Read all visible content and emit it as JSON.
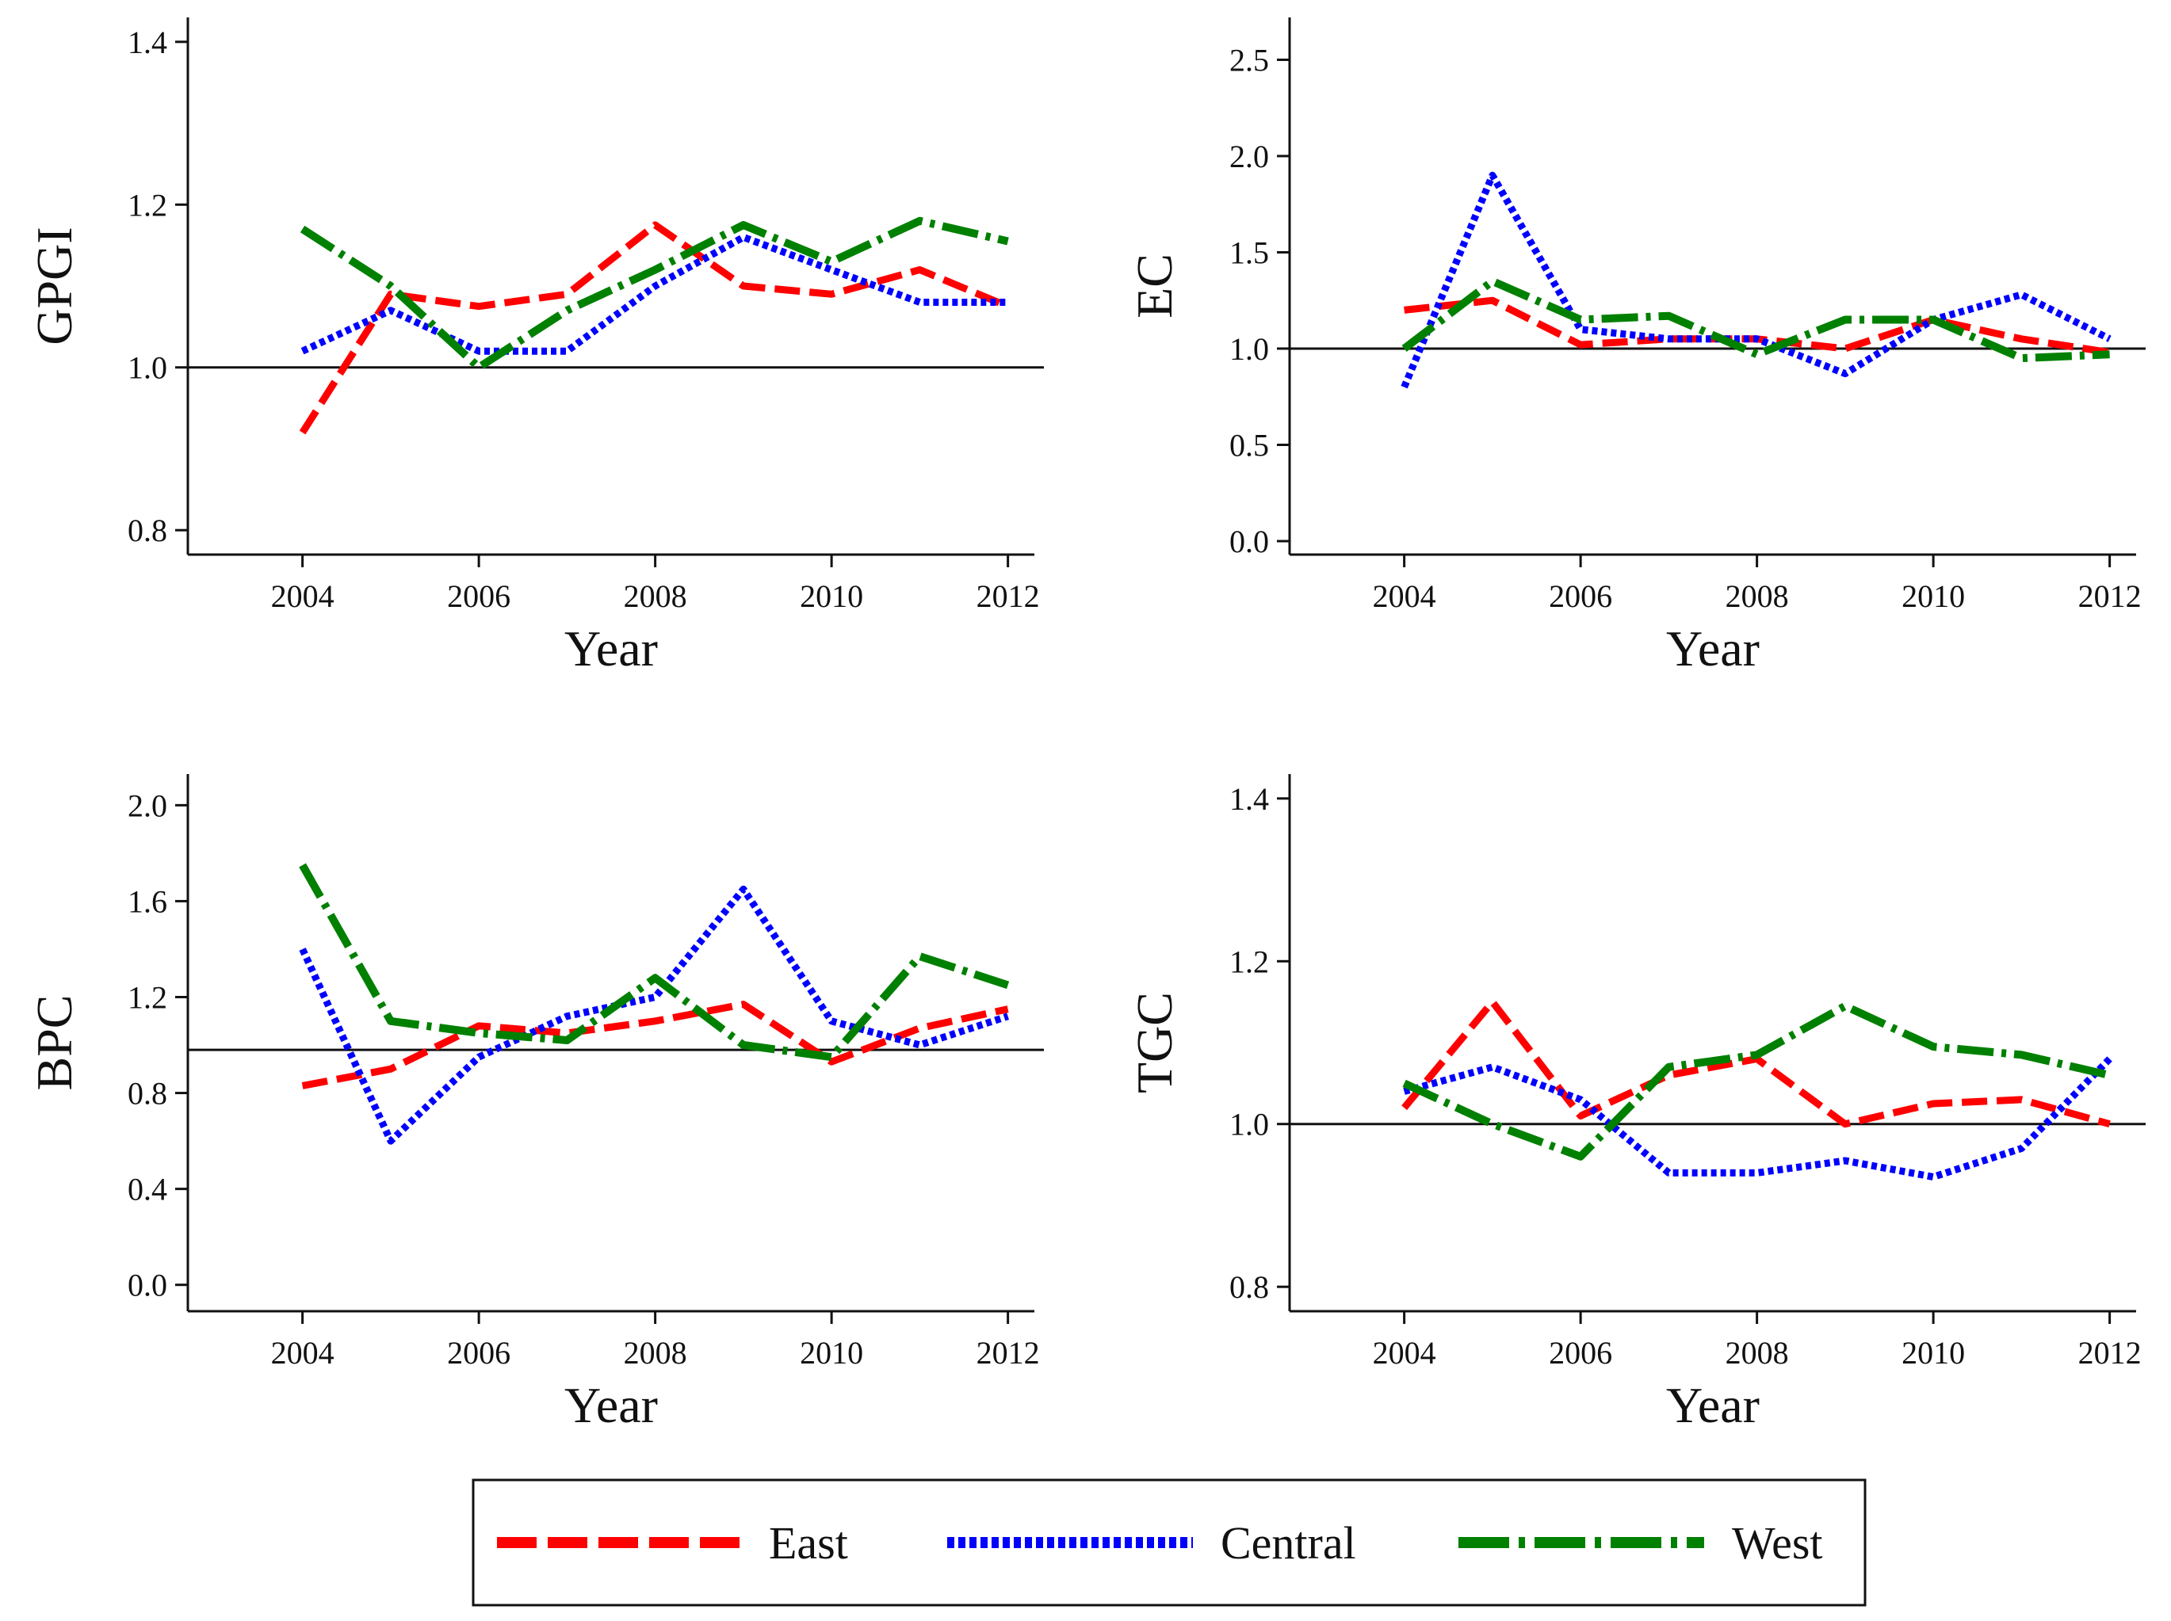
{
  "legend": {
    "entries": [
      {
        "name": "East",
        "color": "#ff0000",
        "style": "dashed"
      },
      {
        "name": "Central",
        "color": "#0000ff",
        "style": "dotted"
      },
      {
        "name": "West",
        "color": "#008000",
        "style": "dashdot"
      }
    ],
    "placement": "bottom-center"
  },
  "chart_data": [
    {
      "type": "line",
      "ylabel": "GPGI",
      "xlabel": "Year",
      "x": [
        2004,
        2005,
        2006,
        2007,
        2008,
        2009,
        2010,
        2011,
        2012
      ],
      "xticks": [
        "2004",
        "2006",
        "2008",
        "2010",
        "2012"
      ],
      "xlim": [
        2002.7,
        2012.3
      ],
      "ylim": [
        0.77,
        1.43
      ],
      "yticks": [
        "0.8",
        "1.0",
        "1.2",
        "1.4"
      ],
      "reference_line": 1.0,
      "series": [
        {
          "name": "East",
          "values": [
            0.92,
            1.09,
            1.075,
            1.09,
            1.175,
            1.1,
            1.09,
            1.12,
            1.075
          ]
        },
        {
          "name": "Central",
          "values": [
            1.02,
            1.07,
            1.02,
            1.02,
            1.1,
            1.16,
            1.12,
            1.08,
            1.08
          ]
        },
        {
          "name": "West",
          "values": [
            1.17,
            1.1,
            1.0,
            1.07,
            1.12,
            1.175,
            1.13,
            1.18,
            1.155
          ]
        }
      ]
    },
    {
      "type": "line",
      "ylabel": "EC",
      "xlabel": "Year",
      "x": [
        2004,
        2005,
        2006,
        2007,
        2008,
        2009,
        2010,
        2011,
        2012
      ],
      "xticks": [
        "2004",
        "2006",
        "2008",
        "2010",
        "2012"
      ],
      "xlim": [
        2002.7,
        2012.3
      ],
      "ylim": [
        -0.07,
        2.72
      ],
      "yticks": [
        "0.0",
        "0.5",
        "1.0",
        "1.5",
        "2.0",
        "2.5"
      ],
      "reference_line": 1.0,
      "series": [
        {
          "name": "East",
          "values": [
            1.2,
            1.25,
            1.02,
            1.05,
            1.05,
            1.0,
            1.15,
            1.05,
            0.98
          ]
        },
        {
          "name": "Central",
          "values": [
            0.8,
            1.9,
            1.1,
            1.05,
            1.05,
            0.87,
            1.15,
            1.28,
            1.05
          ]
        },
        {
          "name": "West",
          "values": [
            1.0,
            1.35,
            1.15,
            1.17,
            0.97,
            1.15,
            1.15,
            0.95,
            0.97
          ]
        }
      ]
    },
    {
      "type": "line",
      "ylabel": "BPC",
      "xlabel": "Year",
      "x": [
        2004,
        2005,
        2006,
        2007,
        2008,
        2009,
        2010,
        2011,
        2012
      ],
      "xticks": [
        "2004",
        "2006",
        "2008",
        "2010",
        "2012"
      ],
      "xlim": [
        2002.7,
        2012.3
      ],
      "ylim": [
        -0.11,
        2.13
      ],
      "yticks": [
        "0.0",
        "0.4",
        "0.8",
        "1.2",
        "1.6",
        "2.0"
      ],
      "reference_line": 0.98,
      "series": [
        {
          "name": "East",
          "values": [
            0.83,
            0.9,
            1.08,
            1.05,
            1.1,
            1.17,
            0.93,
            1.07,
            1.15
          ]
        },
        {
          "name": "Central",
          "values": [
            1.4,
            0.6,
            0.95,
            1.12,
            1.2,
            1.65,
            1.1,
            1.0,
            1.12
          ]
        },
        {
          "name": "West",
          "values": [
            1.75,
            1.1,
            1.05,
            1.02,
            1.28,
            1.0,
            0.95,
            1.37,
            1.25
          ]
        }
      ]
    },
    {
      "type": "line",
      "ylabel": "TGC",
      "xlabel": "Year",
      "x": [
        2004,
        2005,
        2006,
        2007,
        2008,
        2009,
        2010,
        2011,
        2012
      ],
      "xticks": [
        "2004",
        "2006",
        "2008",
        "2010",
        "2012"
      ],
      "xlim": [
        2002.7,
        2012.3
      ],
      "ylim": [
        0.77,
        1.43
      ],
      "yticks": [
        "0.8",
        "1.0",
        "1.2",
        "1.4"
      ],
      "reference_line": 1.0,
      "series": [
        {
          "name": "East",
          "values": [
            1.02,
            1.15,
            1.01,
            1.06,
            1.08,
            1.0,
            1.025,
            1.03,
            1.0
          ]
        },
        {
          "name": "Central",
          "values": [
            1.04,
            1.07,
            1.03,
            0.94,
            0.94,
            0.955,
            0.935,
            0.97,
            1.08
          ]
        },
        {
          "name": "West",
          "values": [
            1.05,
            1.0,
            0.96,
            1.07,
            1.085,
            1.145,
            1.095,
            1.085,
            1.06
          ]
        }
      ]
    }
  ]
}
